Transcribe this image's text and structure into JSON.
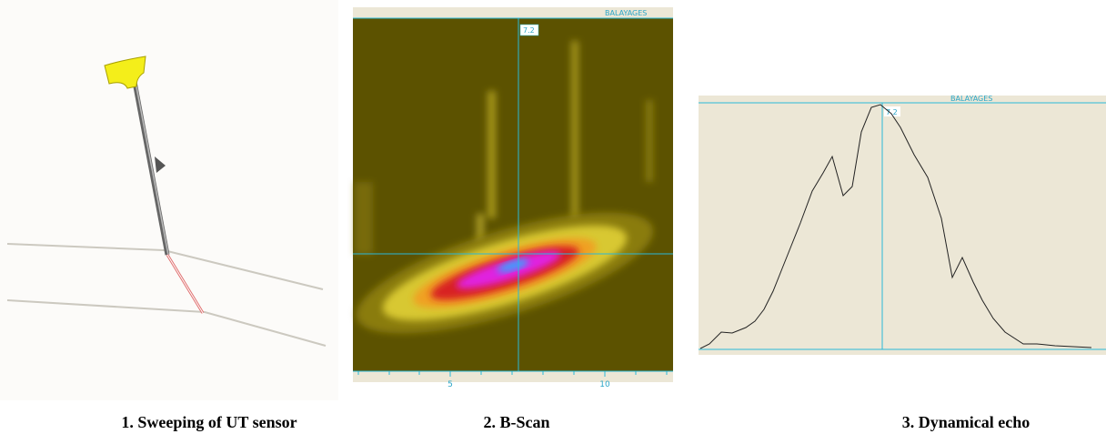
{
  "panels": [
    {
      "caption": "1. Sweeping of UT sensor"
    },
    {
      "caption": "2. B-Scan",
      "header": "BALAYAGES",
      "cursor_label": "7.2",
      "x_tick_labels": [
        "5",
        "10"
      ]
    },
    {
      "caption": "3. Dynamical echo",
      "header": "BALAYAGES",
      "cursor_label": "7.2"
    }
  ]
}
